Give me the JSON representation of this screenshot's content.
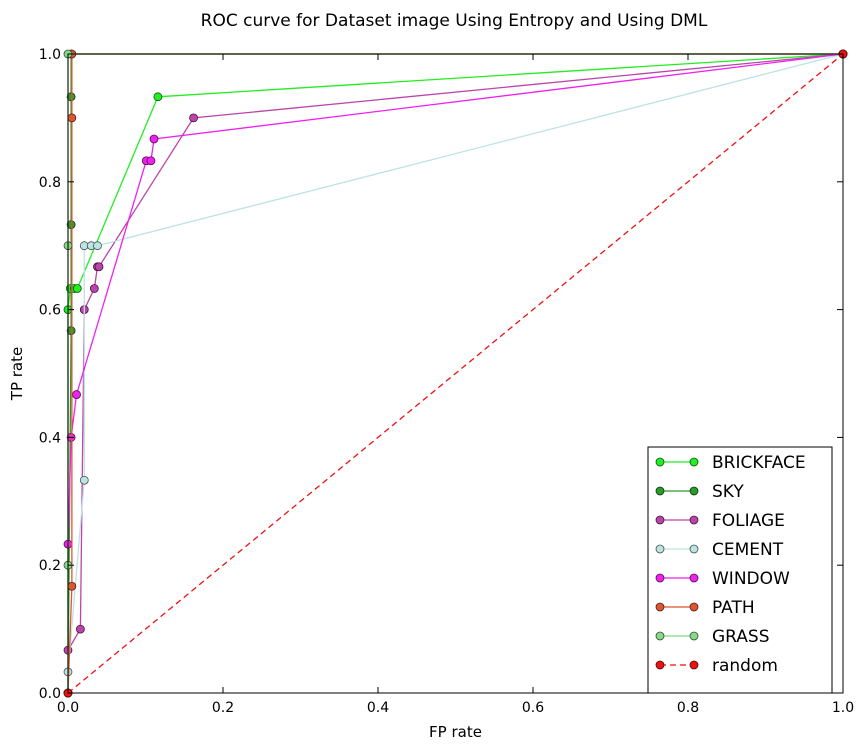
{
  "chart_data": {
    "type": "line",
    "title": "ROC curve for Dataset image Using Entropy and Using DML",
    "xlabel": "FP rate",
    "ylabel": "TP rate",
    "xlim": [
      0,
      1
    ],
    "ylim": [
      0,
      1
    ],
    "xticks": [
      "0.0",
      "0.2",
      "0.4",
      "0.6",
      "0.8",
      "1.0"
    ],
    "yticks": [
      "0.0",
      "0.2",
      "0.4",
      "0.6",
      "0.8",
      "1.0"
    ],
    "grid": false,
    "legend_position": "bottom-right",
    "series": [
      {
        "name": "BRICKFACE",
        "color": "#22ee22",
        "dashed": false,
        "x": [
          0.0,
          0.0,
          0.003,
          0.008,
          0.012,
          0.116,
          1.0
        ],
        "y": [
          0.0,
          0.6,
          0.633,
          0.633,
          0.633,
          0.933,
          1.0
        ]
      },
      {
        "name": "SKY",
        "color": "#2a9a2a",
        "dashed": false,
        "x": [
          0.0,
          0.004,
          0.004,
          0.004,
          0.004,
          1.0
        ],
        "y": [
          0.0,
          0.567,
          0.733,
          0.933,
          1.0,
          1.0
        ]
      },
      {
        "name": "FOLIAGE",
        "color": "#bb44aa",
        "dashed": false,
        "x": [
          0.0,
          0.016,
          0.021,
          0.034,
          0.038,
          0.04,
          0.162,
          1.0
        ],
        "y": [
          0.067,
          0.1,
          0.6,
          0.633,
          0.667,
          0.667,
          0.9,
          1.0
        ]
      },
      {
        "name": "CEMENT",
        "color": "#bde3e3",
        "dashed": false,
        "x": [
          0.0,
          0.021,
          0.021,
          0.03,
          0.038,
          1.0
        ],
        "y": [
          0.033,
          0.333,
          0.7,
          0.7,
          0.7,
          1.0
        ]
      },
      {
        "name": "WINDOW",
        "color": "#ee22ee",
        "dashed": false,
        "x": [
          0.0,
          0.004,
          0.011,
          0.101,
          0.107,
          0.111,
          1.0
        ],
        "y": [
          0.233,
          0.4,
          0.467,
          0.833,
          0.833,
          0.867,
          1.0
        ]
      },
      {
        "name": "PATH",
        "color": "#dd5533",
        "dashed": false,
        "x": [
          0.0,
          0.005,
          0.005,
          0.005,
          1.0
        ],
        "y": [
          0.0,
          0.167,
          0.9,
          1.0,
          1.0
        ]
      },
      {
        "name": "GRASS",
        "color": "#88d888",
        "dashed": false,
        "x": [
          0.0,
          0.0,
          0.0,
          0.0,
          1.0
        ],
        "y": [
          0.0,
          0.2,
          0.7,
          1.0,
          1.0
        ]
      },
      {
        "name": "random",
        "color": "#ee1111",
        "dashed": true,
        "x": [
          0.0,
          1.0
        ],
        "y": [
          0.0,
          1.0
        ]
      }
    ]
  }
}
